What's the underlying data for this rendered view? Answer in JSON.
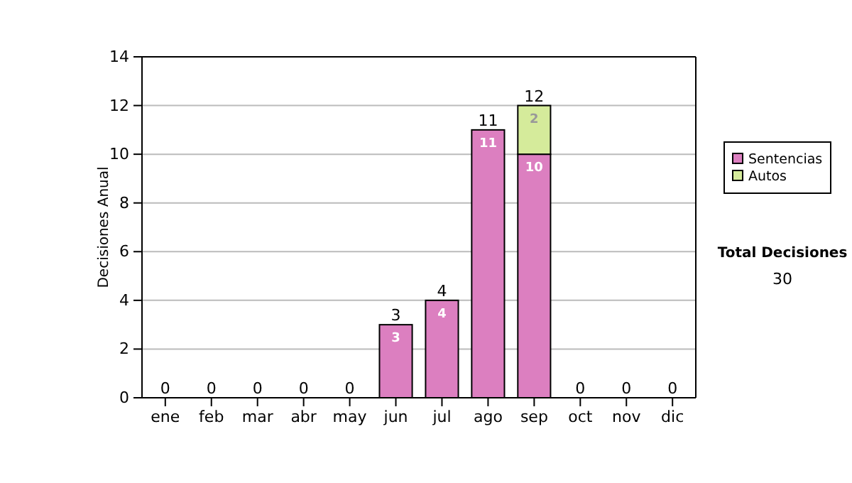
{
  "chart_data": {
    "type": "bar",
    "stacked": true,
    "ylabel": "Decisiones Anual",
    "categories": [
      "ene",
      "feb",
      "mar",
      "abr",
      "may",
      "jun",
      "jul",
      "ago",
      "sep",
      "oct",
      "nov",
      "dic"
    ],
    "series": [
      {
        "name": "Sentencias",
        "color": "#dc7fc0",
        "values": [
          0,
          0,
          0,
          0,
          0,
          3,
          4,
          11,
          10,
          0,
          0,
          0
        ],
        "value_labels": [
          null,
          null,
          null,
          null,
          null,
          "3",
          "4",
          "11",
          "10",
          null,
          null,
          null
        ]
      },
      {
        "name": "Autos",
        "color": "#d5eb9b",
        "values": [
          0,
          0,
          0,
          0,
          0,
          0,
          0,
          0,
          2,
          0,
          0,
          0
        ],
        "value_labels": [
          null,
          null,
          null,
          null,
          null,
          null,
          null,
          null,
          "2",
          null,
          null,
          null
        ]
      }
    ],
    "totals": [
      "0",
      "0",
      "0",
      "0",
      "0",
      "3",
      "4",
      "11",
      "12",
      "0",
      "0",
      "0"
    ],
    "ylim": [
      0,
      14
    ],
    "yticks": [
      0,
      2,
      4,
      6,
      8,
      10,
      12,
      14
    ],
    "grid": "y",
    "legend": "right",
    "annotations": [
      "Total Decisiones",
      "30"
    ]
  }
}
